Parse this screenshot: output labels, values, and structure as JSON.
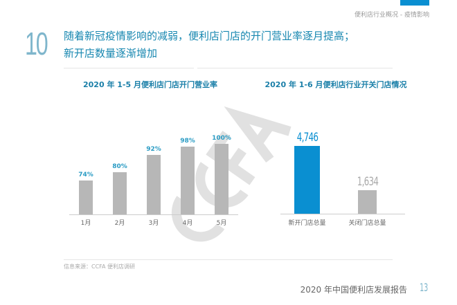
{
  "header": {
    "breadcrumb": "便利店行业概况 - 疫情影响",
    "section_number": "10",
    "headline_line1": "随着新冠疫情影响的减弱，便利店门店的开门营业率逐月提高；",
    "headline_line2": "新开店数量逐渐增加"
  },
  "watermark": "CCFA",
  "colors": {
    "accent": "#0a8fd1",
    "bar_gray": "#b7b7b7",
    "title_blue": "#1a7fa8"
  },
  "chart_data": [
    {
      "type": "bar",
      "title": "2020 年 1-5 月便利店门店开门营业率",
      "categories": [
        "1月",
        "2月",
        "3月",
        "4月",
        "5月"
      ],
      "values": [
        74,
        80,
        92,
        98,
        100
      ],
      "labels": [
        "74%",
        "80%",
        "92%",
        "98%",
        "100%"
      ]
    },
    {
      "type": "bar",
      "title": "2020 年 1-6 月便利店行业开关门店情况",
      "categories": [
        "新开门店总量",
        "关闭门店总量"
      ],
      "values": [
        4746,
        1634
      ],
      "labels": [
        "4,746",
        "1,634"
      ],
      "bar_colors": [
        "#0a8fd1",
        "#b7b7b7"
      ]
    }
  ],
  "footer": {
    "source": "信息来源：CCFA 便利店调研",
    "report": "2020 年中国便利店发展报告",
    "page": "13"
  }
}
